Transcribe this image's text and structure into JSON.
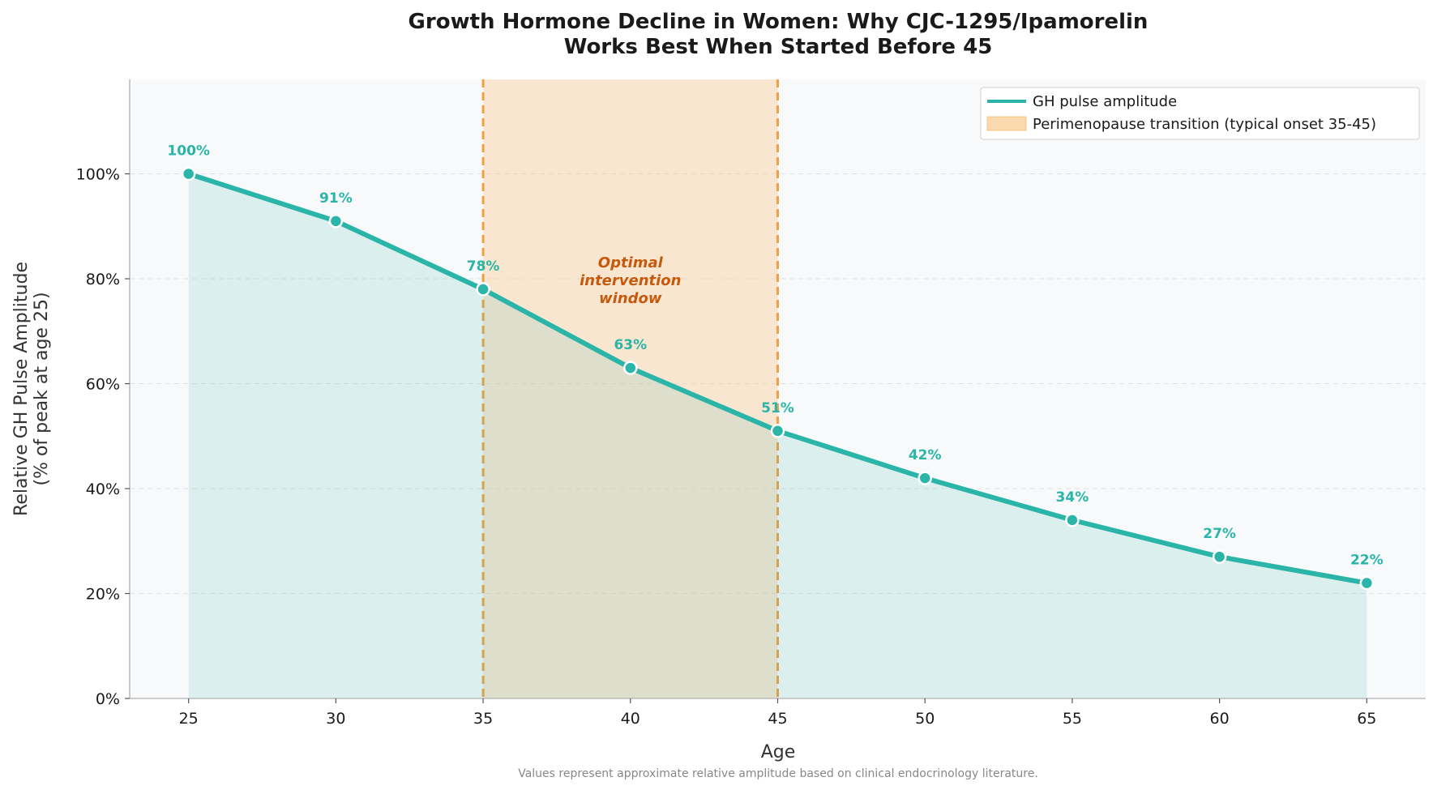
{
  "chart_data": {
    "type": "line",
    "title_lines": [
      "Growth Hormone Decline in Women: Why CJC-1295/Ipamorelin",
      "Works Best When Started Before 45"
    ],
    "xlabel": "Age",
    "ylabel_lines": [
      "Relative GH Pulse Amplitude",
      "(% of peak at age 25)"
    ],
    "x": [
      25,
      30,
      35,
      40,
      45,
      50,
      55,
      60,
      65
    ],
    "series": [
      {
        "name": "GH pulse amplitude",
        "values": [
          100,
          91,
          78,
          63,
          51,
          42,
          34,
          27,
          22
        ],
        "point_labels": [
          "100%",
          "91%",
          "78%",
          "63%",
          "51%",
          "42%",
          "34%",
          "27%",
          "22%"
        ],
        "color": "#2ab5a8"
      }
    ],
    "xlim": [
      23,
      67
    ],
    "ylim": [
      0,
      118
    ],
    "x_ticks": [
      "25",
      "30",
      "35",
      "40",
      "45",
      "50",
      "55",
      "60",
      "65"
    ],
    "x_tick_values": [
      25,
      30,
      35,
      40,
      45,
      50,
      55,
      60,
      65
    ],
    "y_ticks": [
      "0%",
      "20%",
      "40%",
      "60%",
      "80%",
      "100%"
    ],
    "y_tick_values": [
      0,
      20,
      40,
      60,
      80,
      100
    ],
    "shaded_region": {
      "label": "Perimenopause transition (typical onset 35-45)",
      "x_start": 35,
      "x_end": 45,
      "color": "#f9c98d",
      "line_color": "#f0a040"
    },
    "annotation": {
      "lines": [
        "Optimal",
        "intervention",
        "window"
      ],
      "x": 40,
      "y": 80,
      "color": "#c65a0c"
    },
    "legend_position": "top-right",
    "grid": "horizontal dashed",
    "footnote": "Values represent approximate relative amplitude based on clinical endocrinology literature.",
    "colors": {
      "line": "#2ab5a8",
      "fill": "#dcf0ee",
      "plot_background": "#f7f9fa",
      "region": "#f9c98d",
      "region_edge": "#f0a040",
      "annotation": "#c65a0c"
    }
  }
}
